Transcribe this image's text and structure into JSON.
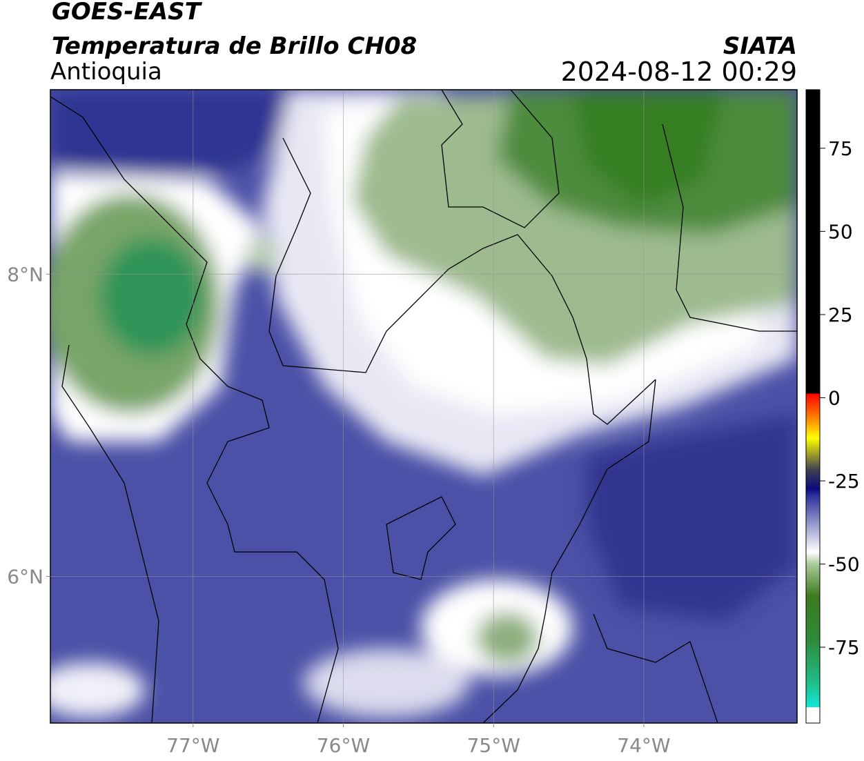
{
  "header": {
    "title": "GOES-EAST",
    "subtitle": "Temperatura de Brillo CH08",
    "region": "Antioquia",
    "source": "SIATA",
    "datetime": "2024-08-12 00:29"
  },
  "map": {
    "xlim": [
      -77.95,
      -72.98
    ],
    "ylim": [
      5.03,
      9.22
    ],
    "xticks": [
      {
        "value": -77,
        "label": "77°W"
      },
      {
        "value": -76,
        "label": "76°W"
      },
      {
        "value": -75,
        "label": "75°W"
      },
      {
        "value": -74,
        "label": "74°W"
      }
    ],
    "yticks": [
      {
        "value": 6,
        "label": "6°N"
      },
      {
        "value": 8,
        "label": "8°N"
      }
    ],
    "grid": true
  },
  "colorbar": {
    "ylim": [
      -97.8,
      92.6
    ],
    "yticks": [
      75,
      50,
      25,
      0,
      -25,
      -50,
      -75
    ]
  }
}
